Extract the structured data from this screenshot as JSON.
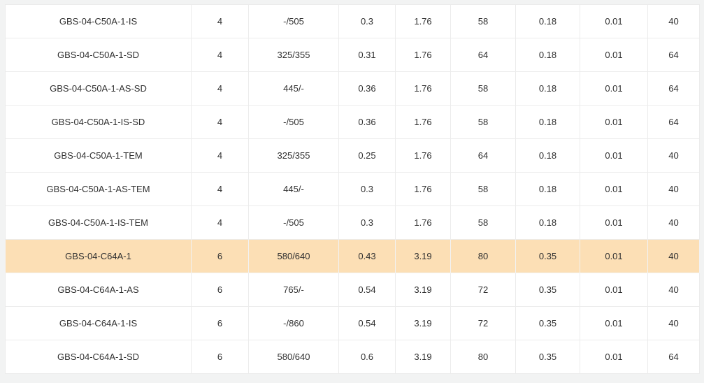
{
  "page": {
    "background": "#f2f3f3"
  },
  "table": {
    "border_color": "#ececec",
    "text_color": "#303030",
    "highlight_color": "#fcdfb5",
    "highlighted_row_index": 7,
    "rows": [
      {
        "highlighted": false,
        "cells": [
          "GBS-04-C50A-1-IS",
          "4",
          "-/505",
          "0.3",
          "1.76",
          "58",
          "0.18",
          "0.01",
          "40"
        ]
      },
      {
        "highlighted": false,
        "cells": [
          "GBS-04-C50A-1-SD",
          "4",
          "325/355",
          "0.31",
          "1.76",
          "64",
          "0.18",
          "0.01",
          "64"
        ]
      },
      {
        "highlighted": false,
        "cells": [
          "GBS-04-C50A-1-AS-SD",
          "4",
          "445/-",
          "0.36",
          "1.76",
          "58",
          "0.18",
          "0.01",
          "64"
        ]
      },
      {
        "highlighted": false,
        "cells": [
          "GBS-04-C50A-1-IS-SD",
          "4",
          "-/505",
          "0.36",
          "1.76",
          "58",
          "0.18",
          "0.01",
          "64"
        ]
      },
      {
        "highlighted": false,
        "cells": [
          "GBS-04-C50A-1-TEM",
          "4",
          "325/355",
          "0.25",
          "1.76",
          "64",
          "0.18",
          "0.01",
          "40"
        ]
      },
      {
        "highlighted": false,
        "cells": [
          "GBS-04-C50A-1-AS-TEM",
          "4",
          "445/-",
          "0.3",
          "1.76",
          "58",
          "0.18",
          "0.01",
          "40"
        ]
      },
      {
        "highlighted": false,
        "cells": [
          "GBS-04-C50A-1-IS-TEM",
          "4",
          "-/505",
          "0.3",
          "1.76",
          "58",
          "0.18",
          "0.01",
          "40"
        ]
      },
      {
        "highlighted": true,
        "cells": [
          "GBS-04-C64A-1",
          "6",
          "580/640",
          "0.43",
          "3.19",
          "80",
          "0.35",
          "0.01",
          "40"
        ]
      },
      {
        "highlighted": false,
        "cells": [
          "GBS-04-C64A-1-AS",
          "6",
          "765/-",
          "0.54",
          "3.19",
          "72",
          "0.35",
          "0.01",
          "40"
        ]
      },
      {
        "highlighted": false,
        "cells": [
          "GBS-04-C64A-1-IS",
          "6",
          "-/860",
          "0.54",
          "3.19",
          "72",
          "0.35",
          "0.01",
          "40"
        ]
      },
      {
        "highlighted": false,
        "cells": [
          "GBS-04-C64A-1-SD",
          "6",
          "580/640",
          "0.6",
          "3.19",
          "80",
          "0.35",
          "0.01",
          "64"
        ]
      }
    ]
  }
}
